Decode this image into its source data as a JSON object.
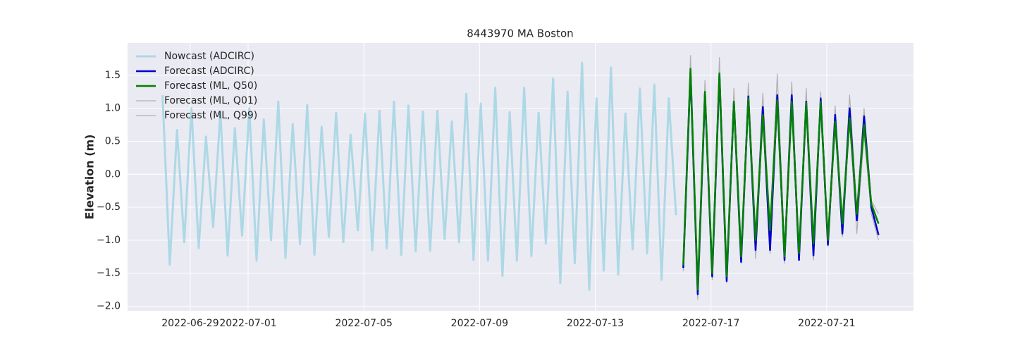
{
  "chart_data": {
    "type": "line",
    "title": "8443970 MA Boston",
    "y_label": "Elevation (m)",
    "grid": true,
    "legend": "upper left",
    "xlim": [
      "2022-06-26T20:00",
      "2022-07-24T00:00"
    ],
    "xticks": [
      "2022-06-29",
      "2022-07-01",
      "2022-07-05",
      "2022-07-09",
      "2022-07-13",
      "2022-07-17",
      "2022-07-21"
    ],
    "ylim": [
      -2.07,
      1.99
    ],
    "yticks": [
      {
        "value": -2,
        "label": "−2.0"
      },
      {
        "value": -1.5,
        "label": "−1.5"
      },
      {
        "value": -1,
        "label": "−1.0"
      },
      {
        "value": -0.5,
        "label": "−0.5"
      },
      {
        "value": 0,
        "label": "0.0"
      },
      0.5,
      {
        "value": 1,
        "label": "1.0"
      },
      1.5
    ],
    "series": [
      {
        "name": "Nowcast (ADCIRC)",
        "color": "#add8e6",
        "width": 3,
        "x": [
          "2022-06-28T01:00",
          "2022-06-28T07:00",
          "2022-06-28T13:00",
          "2022-06-28T19:00",
          "2022-06-29T01:00",
          "2022-06-29T07:00",
          "2022-06-29T13:00",
          "2022-06-29T19:00",
          "2022-06-30T01:00",
          "2022-06-30T07:00",
          "2022-06-30T13:00",
          "2022-06-30T19:00",
          "2022-07-01T01:00",
          "2022-07-01T07:00",
          "2022-07-01T13:00",
          "2022-07-01T19:00",
          "2022-07-02T01:00",
          "2022-07-02T07:00",
          "2022-07-02T13:00",
          "2022-07-02T19:00",
          "2022-07-03T01:00",
          "2022-07-03T07:00",
          "2022-07-03T13:00",
          "2022-07-03T19:00",
          "2022-07-04T01:00",
          "2022-07-04T07:00",
          "2022-07-04T13:00",
          "2022-07-04T19:00",
          "2022-07-05T01:00",
          "2022-07-05T07:00",
          "2022-07-05T13:00",
          "2022-07-05T19:00",
          "2022-07-06T01:00",
          "2022-07-06T07:00",
          "2022-07-06T13:00",
          "2022-07-06T19:00",
          "2022-07-07T01:00",
          "2022-07-07T07:00",
          "2022-07-07T13:00",
          "2022-07-07T19:00",
          "2022-07-08T01:00",
          "2022-07-08T07:00",
          "2022-07-08T13:00",
          "2022-07-08T19:00",
          "2022-07-09T01:00",
          "2022-07-09T07:00",
          "2022-07-09T13:00",
          "2022-07-09T19:00",
          "2022-07-10T01:00",
          "2022-07-10T07:00",
          "2022-07-10T13:00",
          "2022-07-10T19:00",
          "2022-07-11T01:00",
          "2022-07-11T07:00",
          "2022-07-11T13:00",
          "2022-07-11T19:00",
          "2022-07-12T01:00",
          "2022-07-12T07:00",
          "2022-07-12T13:00",
          "2022-07-12T19:00",
          "2022-07-13T01:00",
          "2022-07-13T07:00",
          "2022-07-13T13:00",
          "2022-07-13T19:00",
          "2022-07-14T01:00",
          "2022-07-14T07:00",
          "2022-07-14T13:00",
          "2022-07-14T19:00",
          "2022-07-15T01:00",
          "2022-07-15T07:00",
          "2022-07-15T13:00",
          "2022-07-15T19:00"
        ],
        "values": [
          1.2,
          -1.37,
          0.67,
          -1.03,
          1.0,
          -1.12,
          0.57,
          -0.8,
          0.95,
          -1.23,
          0.7,
          -0.93,
          1.0,
          -1.31,
          0.83,
          -1.0,
          1.1,
          -1.27,
          0.76,
          -1.06,
          1.05,
          -1.22,
          0.72,
          -0.95,
          0.93,
          -1.03,
          0.6,
          -0.85,
          0.92,
          -1.15,
          0.96,
          -1.12,
          1.1,
          -1.22,
          1.04,
          -1.17,
          0.95,
          -1.16,
          0.96,
          -0.98,
          0.8,
          -1.03,
          1.22,
          -1.3,
          1.07,
          -1.31,
          1.31,
          -1.54,
          0.94,
          -1.31,
          1.31,
          -1.24,
          0.93,
          -1.05,
          1.45,
          -1.65,
          1.25,
          -1.35,
          1.69,
          -1.75,
          1.15,
          -1.46,
          1.62,
          -1.52,
          0.92,
          -1.14,
          1.3,
          -1.2,
          1.36,
          -1.6,
          1.15,
          -0.62
        ]
      },
      {
        "name": "Forecast (ADCIRC)",
        "color": "#0000cd",
        "width": 2.5,
        "x": [
          "2022-07-16T01:00",
          "2022-07-16T07:00",
          "2022-07-16T13:00",
          "2022-07-16T19:00",
          "2022-07-17T01:00",
          "2022-07-17T07:00",
          "2022-07-17T13:00",
          "2022-07-17T19:00",
          "2022-07-18T01:00",
          "2022-07-18T07:00",
          "2022-07-18T13:00",
          "2022-07-18T19:00",
          "2022-07-19T01:00",
          "2022-07-19T07:00",
          "2022-07-19T13:00",
          "2022-07-19T19:00",
          "2022-07-20T01:00",
          "2022-07-20T07:00",
          "2022-07-20T13:00",
          "2022-07-20T19:00",
          "2022-07-21T01:00",
          "2022-07-21T07:00",
          "2022-07-21T13:00",
          "2022-07-21T19:00",
          "2022-07-22T01:00",
          "2022-07-22T07:00",
          "2022-07-22T13:00",
          "2022-07-22T19:00"
        ],
        "values": [
          -1.42,
          1.55,
          -1.82,
          1.22,
          -1.55,
          1.5,
          -1.62,
          1.1,
          -1.33,
          1.18,
          -1.15,
          1.02,
          -1.15,
          1.2,
          -1.3,
          1.2,
          -1.3,
          1.1,
          -1.23,
          1.15,
          -1.07,
          0.9,
          -0.9,
          1.0,
          -0.7,
          0.88,
          -0.5,
          -0.92
        ]
      },
      {
        "name": "Forecast (ML, Q50)",
        "color": "#008000",
        "width": 2.5,
        "x": [
          "2022-07-16T01:00",
          "2022-07-16T07:00",
          "2022-07-16T13:00",
          "2022-07-16T19:00",
          "2022-07-17T01:00",
          "2022-07-17T07:00",
          "2022-07-17T13:00",
          "2022-07-17T19:00",
          "2022-07-18T01:00",
          "2022-07-18T07:00",
          "2022-07-18T13:00",
          "2022-07-18T19:00",
          "2022-07-19T01:00",
          "2022-07-19T07:00",
          "2022-07-19T13:00",
          "2022-07-19T19:00",
          "2022-07-20T01:00",
          "2022-07-20T07:00",
          "2022-07-20T13:00",
          "2022-07-20T19:00",
          "2022-07-21T01:00",
          "2022-07-21T07:00",
          "2022-07-21T13:00",
          "2022-07-21T19:00",
          "2022-07-22T01:00",
          "2022-07-22T07:00",
          "2022-07-22T13:00",
          "2022-07-22T19:00"
        ],
        "values": [
          -1.38,
          1.6,
          -1.75,
          1.25,
          -1.5,
          1.53,
          -1.55,
          1.1,
          -1.25,
          1.15,
          -1.0,
          0.9,
          -0.85,
          1.12,
          -1.25,
          1.1,
          -1.2,
          1.08,
          -1.05,
          1.1,
          -1.0,
          0.8,
          -0.75,
          0.85,
          -0.6,
          0.75,
          -0.45,
          -0.75
        ]
      },
      {
        "name": "Forecast (ML, Q01)",
        "color": "#b0b0b0",
        "width": 1.2,
        "x": [
          "2022-07-16T01:00",
          "2022-07-16T07:00",
          "2022-07-16T13:00",
          "2022-07-16T19:00",
          "2022-07-17T01:00",
          "2022-07-17T07:00",
          "2022-07-17T13:00",
          "2022-07-17T19:00",
          "2022-07-18T01:00",
          "2022-07-18T07:00",
          "2022-07-18T13:00",
          "2022-07-18T19:00",
          "2022-07-19T01:00",
          "2022-07-19T07:00",
          "2022-07-19T13:00",
          "2022-07-19T19:00",
          "2022-07-20T01:00",
          "2022-07-20T07:00",
          "2022-07-20T13:00",
          "2022-07-20T19:00",
          "2022-07-21T01:00",
          "2022-07-21T07:00",
          "2022-07-21T13:00",
          "2022-07-21T19:00",
          "2022-07-22T01:00",
          "2022-07-22T07:00",
          "2022-07-22T13:00",
          "2022-07-22T19:00"
        ],
        "values": [
          -1.47,
          1.5,
          -1.9,
          1.15,
          -1.6,
          1.45,
          -1.65,
          1.05,
          -1.35,
          1.1,
          -1.28,
          0.8,
          -1.2,
          1.05,
          -1.35,
          1.05,
          -1.3,
          1.0,
          -1.3,
          1.0,
          -1.1,
          0.7,
          -0.95,
          0.8,
          -0.9,
          0.6,
          -0.6,
          -1.0
        ]
      },
      {
        "name": "Forecast (ML, Q99)",
        "color": "#b0b0b0",
        "width": 1.2,
        "x": [
          "2022-07-16T01:00",
          "2022-07-16T07:00",
          "2022-07-16T13:00",
          "2022-07-16T19:00",
          "2022-07-17T01:00",
          "2022-07-17T07:00",
          "2022-07-17T13:00",
          "2022-07-17T19:00",
          "2022-07-18T01:00",
          "2022-07-18T07:00",
          "2022-07-18T13:00",
          "2022-07-18T19:00",
          "2022-07-19T01:00",
          "2022-07-19T07:00",
          "2022-07-19T13:00",
          "2022-07-19T19:00",
          "2022-07-20T01:00",
          "2022-07-20T07:00",
          "2022-07-20T13:00",
          "2022-07-20T19:00",
          "2022-07-21T01:00",
          "2022-07-21T07:00",
          "2022-07-21T13:00",
          "2022-07-21T19:00",
          "2022-07-22T01:00",
          "2022-07-22T07:00",
          "2022-07-22T13:00",
          "2022-07-22T19:00"
        ],
        "values": [
          -1.3,
          1.8,
          -1.7,
          1.42,
          -1.4,
          1.77,
          -1.5,
          1.3,
          -1.2,
          1.38,
          -0.95,
          1.23,
          -0.8,
          1.52,
          -1.1,
          1.4,
          -1.15,
          1.3,
          -1.0,
          1.25,
          -0.95,
          1.04,
          -0.7,
          1.2,
          -0.5,
          1.0,
          -0.4,
          -0.6
        ]
      }
    ]
  }
}
